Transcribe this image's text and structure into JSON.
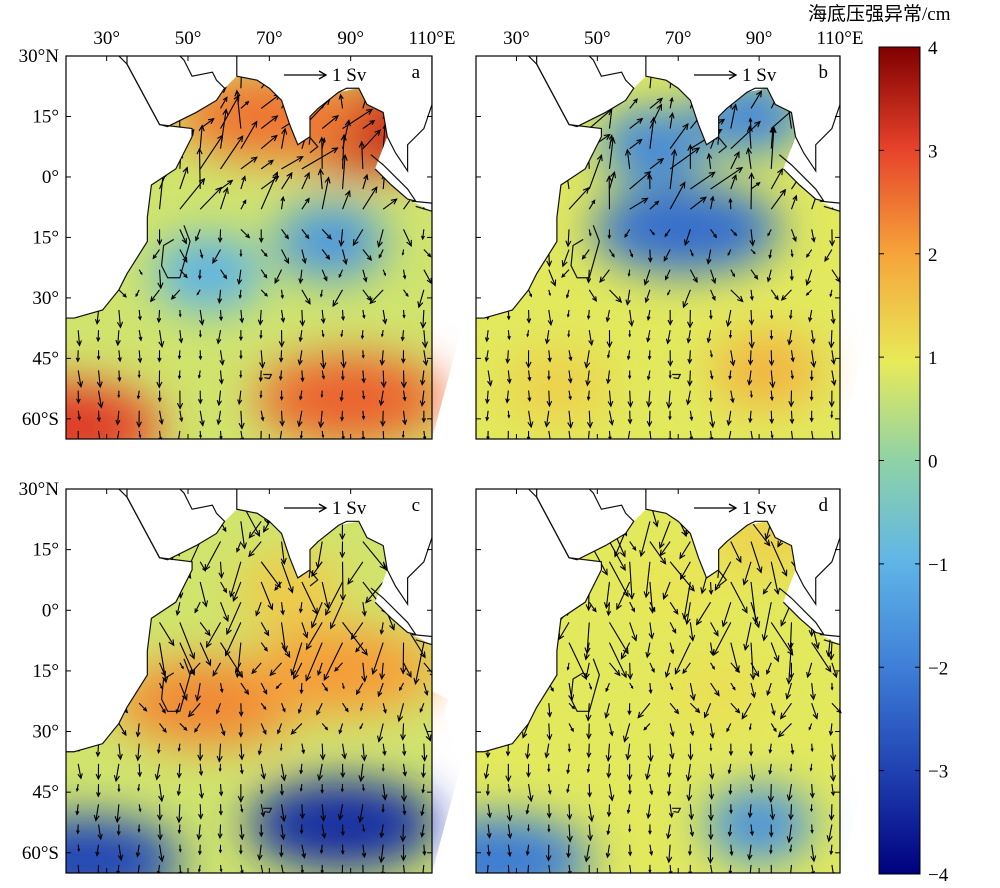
{
  "figure": {
    "colorbar": {
      "title": "海底压强异常/cm",
      "min": -4,
      "max": 4,
      "tick_labels": [
        "4",
        "3",
        "2",
        "1",
        "0",
        "−1",
        "−2",
        "−3",
        "−4"
      ],
      "colormap": "jet"
    },
    "axes": {
      "lon_ticks": [
        "30°",
        "50°",
        "70°",
        "90°",
        "110°E"
      ],
      "lat_ticks": [
        "30°N",
        "15°",
        "0°",
        "15°",
        "30°",
        "45°",
        "60°S"
      ]
    },
    "reference_arrow_label": "1 Sv",
    "panels": [
      {
        "id": "a",
        "label": "a",
        "show_lat_ticks": true,
        "show_lon_ticks": true
      },
      {
        "id": "b",
        "label": "b",
        "show_lat_ticks": false,
        "show_lon_ticks": true
      },
      {
        "id": "c",
        "label": "c",
        "show_lat_ticks": true,
        "show_lon_ticks": false
      },
      {
        "id": "d",
        "label": "d",
        "show_lat_ticks": false,
        "show_lon_ticks": false
      }
    ]
  },
  "chart_data": {
    "type": "heatmap",
    "map_type": "filled contour of ocean bottom pressure anomaly with transport vectors",
    "region": {
      "lon_range": [
        20,
        110
      ],
      "lat_range": [
        -65,
        30
      ]
    },
    "units": "cm",
    "color_range": [
      -4,
      4
    ],
    "vector_reference": "1 Sv",
    "panels": [
      {
        "label": "a",
        "features": [
          {
            "lon": 90,
            "lat": -55,
            "value": 2.6
          },
          {
            "lon": 20,
            "lat": -62,
            "value": 3.0
          },
          {
            "lon": 85,
            "lat": -16,
            "value": -1.5
          },
          {
            "lon": 95,
            "lat": 12,
            "value": 3.2
          },
          {
            "lon": 70,
            "lat": 15,
            "value": 2.4
          },
          {
            "lon": 55,
            "lat": -24,
            "value": -1.0
          }
        ]
      },
      {
        "label": "b",
        "features": [
          {
            "lon": 72,
            "lat": -13,
            "value": -2.2
          },
          {
            "lon": 64,
            "lat": 8,
            "value": -1.8
          },
          {
            "lon": 88,
            "lat": 15,
            "value": -1.8
          },
          {
            "lon": 92,
            "lat": -48,
            "value": 1.7
          },
          {
            "lon": 40,
            "lat": -52,
            "value": 1.3
          }
        ]
      },
      {
        "label": "c",
        "features": [
          {
            "lon": 88,
            "lat": -53,
            "value": -3.2
          },
          {
            "lon": 25,
            "lat": -62,
            "value": -2.8
          },
          {
            "lon": 55,
            "lat": -23,
            "value": 2.2
          },
          {
            "lon": 88,
            "lat": -15,
            "value": 2.0
          },
          {
            "lon": 75,
            "lat": 5,
            "value": 1.4
          }
        ]
      },
      {
        "label": "d",
        "features": [
          {
            "lon": 90,
            "lat": -53,
            "value": -1.6
          },
          {
            "lon": 25,
            "lat": -62,
            "value": -2.0
          },
          {
            "lon": 70,
            "lat": 5,
            "value": 1.0
          },
          {
            "lon": 80,
            "lat": -20,
            "value": 1.1
          },
          {
            "lon": 92,
            "lat": 18,
            "value": 1.3
          }
        ]
      }
    ]
  }
}
